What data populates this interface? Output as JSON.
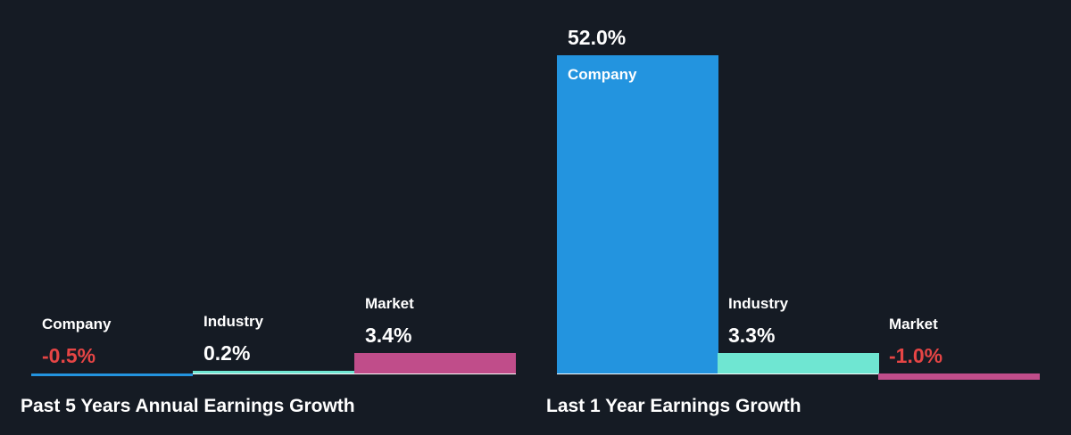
{
  "colors": {
    "background": "#151b24",
    "text": "#ffffff",
    "negative": "#e64545",
    "company": "#2394df",
    "industry": "#6fe6d2",
    "market": "#c04d8a"
  },
  "chart_data": [
    {
      "type": "bar",
      "title": "Past 5 Years Annual Earnings Growth",
      "categories": [
        "Company",
        "Industry",
        "Market"
      ],
      "values": [
        -0.5,
        0.2,
        3.4
      ],
      "value_labels": [
        "-0.5%",
        "0.2%",
        "3.4%"
      ],
      "unit": "%",
      "ylim": [
        -1.0,
        52.0
      ],
      "grid": false
    },
    {
      "type": "bar",
      "title": "Last 1 Year Earnings Growth",
      "categories": [
        "Company",
        "Industry",
        "Market"
      ],
      "values": [
        52.0,
        3.3,
        -1.0
      ],
      "value_labels": [
        "52.0%",
        "3.3%",
        "-1.0%"
      ],
      "unit": "%",
      "ylim": [
        -1.0,
        52.0
      ],
      "grid": false
    }
  ]
}
